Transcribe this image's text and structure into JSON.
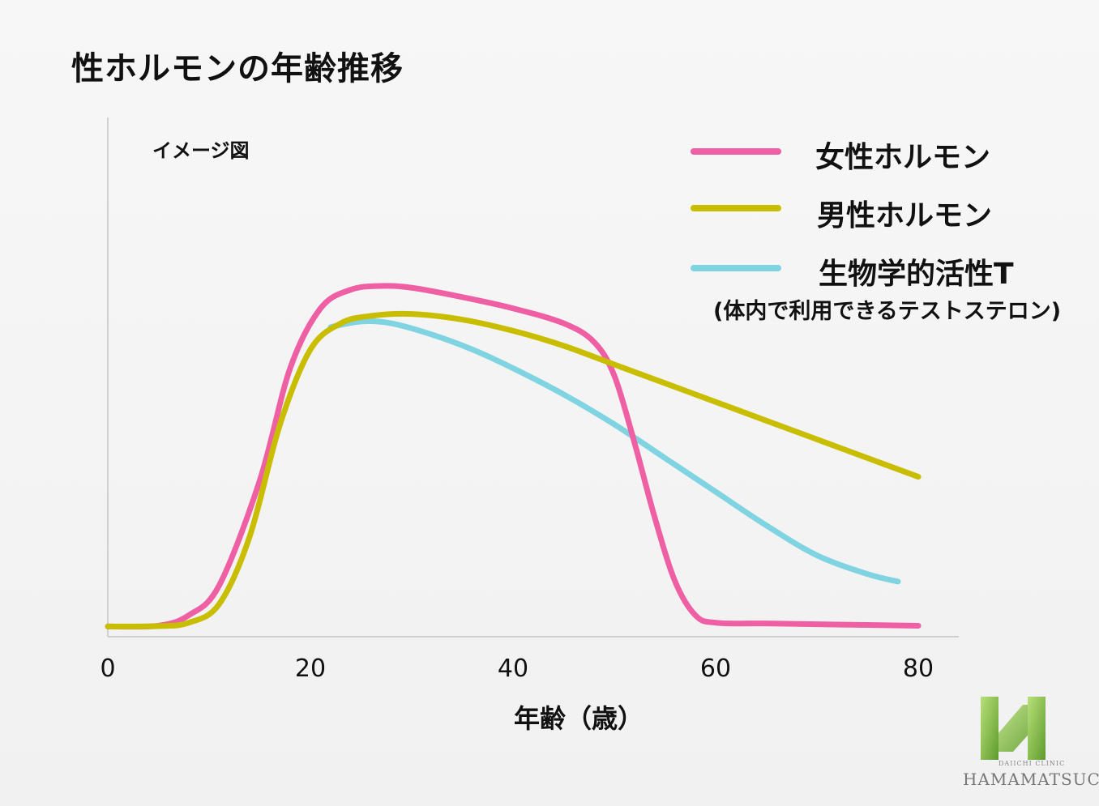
{
  "page": {
    "title": "性ホルモンの年齢推移",
    "note": "イメージ図"
  },
  "chart_data": {
    "type": "line",
    "title": "性ホルモンの年齢推移",
    "xlabel": "年齢（歳）",
    "ylabel": "",
    "xlim": [
      0,
      80
    ],
    "ylim": [
      0,
      100
    ],
    "x_ticks": [
      "0",
      "20",
      "40",
      "60",
      "80"
    ],
    "y_ticks_shown": false,
    "grid": false,
    "legend_position": "top-right",
    "series": [
      {
        "name": "女性ホルモン",
        "color": "#ee5fa3",
        "x": [
          0,
          5,
          8,
          11,
          15,
          18,
          21,
          24,
          27,
          30,
          35,
          40,
          45,
          48,
          50,
          52,
          54,
          56,
          58,
          60,
          65,
          70,
          75,
          80
        ],
        "y": [
          1,
          1.2,
          4,
          12,
          40,
          70,
          86,
          91,
          92,
          91.5,
          89,
          86,
          82,
          77,
          68,
          50,
          30,
          13,
          4,
          2,
          1.8,
          1.6,
          1.4,
          1.2
        ]
      },
      {
        "name": "男性ホルモン",
        "color": "#c9bd00",
        "x": [
          0,
          5,
          8,
          11,
          14,
          17,
          20,
          23,
          26,
          30,
          35,
          40,
          45,
          50,
          55,
          60,
          65,
          70,
          75,
          80
        ],
        "y": [
          1,
          1.1,
          2,
          7,
          25,
          55,
          75,
          82,
          84,
          84.5,
          83,
          80,
          76,
          71,
          66,
          61,
          56,
          51,
          46,
          41
        ]
      },
      {
        "name": "生物学的活性T",
        "sub": "(体内で利用できるテストステロン)",
        "color": "#80d4e2",
        "x": [
          22,
          25,
          28,
          32,
          36,
          40,
          45,
          50,
          55,
          60,
          65,
          70,
          75,
          78
        ],
        "y": [
          81,
          82.5,
          82,
          79,
          75,
          70,
          63,
          55,
          46,
          37,
          28,
          20,
          15,
          13
        ]
      }
    ]
  },
  "logo": {
    "name": "HAMAMATSUCHO",
    "sub": "DAIICHI CLINIC",
    "color": "#8cc63f"
  }
}
